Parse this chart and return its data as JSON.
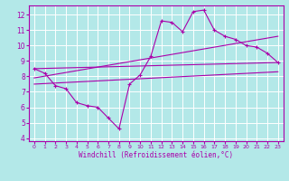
{
  "xlabel": "Windchill (Refroidissement éolien,°C)",
  "bg_color": "#b3e8e8",
  "line_color": "#aa00aa",
  "xlim": [
    -0.5,
    23.5
  ],
  "ylim": [
    3.8,
    12.6
  ],
  "xticks": [
    0,
    1,
    2,
    3,
    4,
    5,
    6,
    7,
    8,
    9,
    10,
    11,
    12,
    13,
    14,
    15,
    16,
    17,
    18,
    19,
    20,
    21,
    22,
    23
  ],
  "yticks": [
    4,
    5,
    6,
    7,
    8,
    9,
    10,
    11,
    12
  ],
  "curve1_x": [
    0,
    1,
    2,
    3,
    4,
    5,
    6,
    7,
    8,
    9,
    10,
    11,
    12,
    13,
    14,
    15,
    16,
    17,
    18,
    19,
    20,
    21,
    22,
    23
  ],
  "curve1_y": [
    8.5,
    8.2,
    7.4,
    7.2,
    6.3,
    6.1,
    6.0,
    5.3,
    4.6,
    7.5,
    8.1,
    9.3,
    11.6,
    11.5,
    10.9,
    12.2,
    12.3,
    11.0,
    10.6,
    10.4,
    10.0,
    9.9,
    9.5,
    8.9
  ],
  "line1_x": [
    0,
    23
  ],
  "line1_y": [
    8.5,
    8.9
  ],
  "line2_x": [
    0,
    23
  ],
  "line2_y": [
    7.9,
    10.6
  ],
  "line3_x": [
    0,
    23
  ],
  "line3_y": [
    7.5,
    8.3
  ]
}
